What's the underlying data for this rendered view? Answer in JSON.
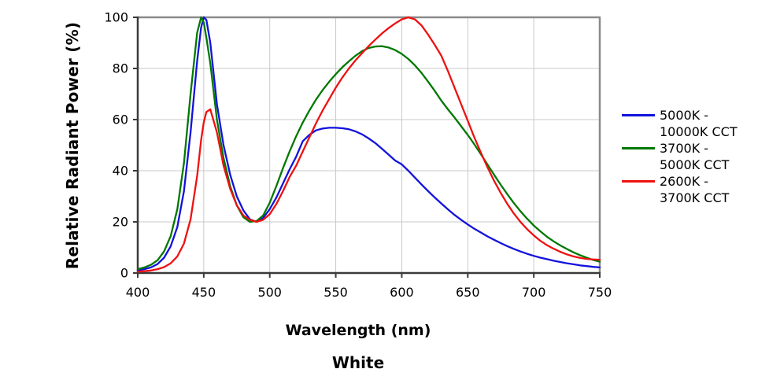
{
  "chart_data": {
    "type": "line",
    "title": "White",
    "xlabel": "Wavelength (nm)",
    "ylabel": "Relative Radiant Power (%)",
    "xlim": [
      400,
      750
    ],
    "ylim": [
      0,
      100
    ],
    "x_ticks": [
      400,
      450,
      500,
      550,
      600,
      650,
      700,
      750
    ],
    "y_ticks": [
      0,
      20,
      40,
      60,
      80,
      100
    ],
    "grid": true,
    "legend_position": "right",
    "x": [
      400,
      405,
      410,
      415,
      420,
      425,
      430,
      435,
      440,
      445,
      448,
      450,
      452,
      455,
      460,
      465,
      470,
      475,
      480,
      485,
      490,
      495,
      500,
      505,
      510,
      515,
      520,
      525,
      530,
      535,
      540,
      545,
      550,
      555,
      560,
      565,
      570,
      575,
      580,
      585,
      590,
      595,
      600,
      605,
      610,
      615,
      620,
      625,
      630,
      635,
      640,
      645,
      650,
      655,
      660,
      665,
      670,
      675,
      680,
      685,
      690,
      695,
      700,
      705,
      710,
      715,
      720,
      725,
      730,
      735,
      740,
      745,
      750
    ],
    "series": [
      {
        "id": "5000k-10000k",
        "name": "5000K - 10000K CCT",
        "label_line1": "5000K -",
        "label_line2": "10000K CCT",
        "color": "#1212DC",
        "values": [
          1,
          1.5,
          2.2,
          3.5,
          6,
          10.5,
          18,
          32,
          55,
          83,
          96,
          100,
          99,
          90,
          66,
          50,
          38.5,
          30,
          24.5,
          21,
          20,
          21.5,
          25,
          29.5,
          35,
          40.5,
          45.5,
          51.5,
          54,
          55.8,
          56.5,
          56.8,
          56.8,
          56.6,
          56.2,
          55.4,
          54.2,
          52.6,
          50.8,
          48.6,
          46.3,
          44,
          42.5,
          40,
          37.3,
          34.6,
          32,
          29.5,
          27.2,
          24.9,
          22.7,
          20.8,
          19,
          17.3,
          15.8,
          14.3,
          13,
          11.7,
          10.5,
          9.4,
          8.4,
          7.5,
          6.7,
          6,
          5.4,
          4.8,
          4.3,
          3.8,
          3.4,
          3,
          2.7,
          2.4,
          2.2
        ]
      },
      {
        "id": "3700k-5000k",
        "name": "3700K - 5000K CCT",
        "label_line1": "3700K -",
        "label_line2": "5000K CCT",
        "color": "#007800",
        "values": [
          1.5,
          2.2,
          3.2,
          5,
          8.5,
          14.5,
          25,
          43,
          70,
          94,
          100,
          98,
          92,
          82,
          60,
          45,
          34,
          26.5,
          21.8,
          20,
          20.3,
          22.5,
          27.5,
          34,
          41,
          47.5,
          53.5,
          58.8,
          63.5,
          67.8,
          71.5,
          74.8,
          77.8,
          80.5,
          82.8,
          85,
          86.8,
          88,
          88.6,
          88.7,
          88.2,
          87.2,
          85.7,
          83.7,
          81.2,
          78.2,
          74.8,
          71.2,
          67.4,
          64,
          60.8,
          57.4,
          54,
          50.3,
          46.4,
          42.4,
          38.4,
          34.5,
          30.8,
          27.3,
          24.1,
          21.2,
          18.6,
          16.3,
          14.2,
          12.4,
          10.8,
          9.4,
          8.1,
          7,
          6,
          5.1,
          4.4
        ]
      },
      {
        "id": "2600k-3700k",
        "name": "2600K - 3700K CCT",
        "label_line1": "2600K -",
        "label_line2": "3700K CCT",
        "color": "#EE1111",
        "values": [
          0.5,
          0.7,
          1,
          1.5,
          2.3,
          3.8,
          6.5,
          11.5,
          21,
          38,
          52,
          59,
          63,
          64,
          55,
          42,
          33,
          26.5,
          22.5,
          20.8,
          20,
          20.8,
          23,
          27,
          32,
          37.5,
          42,
          47.5,
          53,
          58.5,
          63.5,
          68,
          72.5,
          76.5,
          80,
          83.2,
          86,
          88.8,
          91.3,
          93.7,
          95.8,
          97.6,
          99.2,
          100,
          99.2,
          96.8,
          93.2,
          89.2,
          85,
          79,
          72.5,
          66,
          59.5,
          53,
          47,
          41.3,
          36,
          31.3,
          27,
          23.2,
          19.9,
          17.1,
          14.7,
          12.6,
          10.9,
          9.5,
          8.3,
          7.3,
          6.5,
          5.9,
          5.5,
          5.3,
          5.2
        ]
      }
    ],
    "colors": {
      "grid": "#C9C9C9",
      "axis": "#3A3A3A",
      "border": "#8A8A8A",
      "text": "#000000",
      "background": "#FFFFFF"
    }
  }
}
